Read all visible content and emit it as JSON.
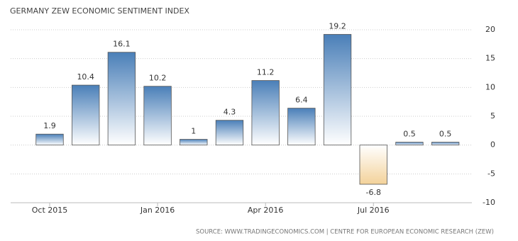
{
  "chart_data": {
    "type": "bar",
    "title": "GERMANY ZEW ECONOMIC SENTIMENT INDEX",
    "source": "SOURCE: WWW.TRADINGECONOMICS.COM | CENTRE FOR EUROPEAN ECONOMIC RESEARCH (ZEW)",
    "categories": [
      "Oct 2015",
      null,
      null,
      "Jan 2016",
      null,
      null,
      "Apr 2016",
      null,
      null,
      "Jul 2016",
      null,
      null
    ],
    "values": [
      1.9,
      10.4,
      16.1,
      10.2,
      1,
      4.3,
      11.2,
      6.4,
      19.2,
      -6.8,
      0.5,
      0.5
    ],
    "color": "#4a7fb8",
    "negative_color": "#f3d29a",
    "ylim": [
      -10,
      20
    ],
    "yticks": [
      -10,
      -5,
      0,
      5,
      10,
      15,
      20
    ],
    "grid": true
  }
}
